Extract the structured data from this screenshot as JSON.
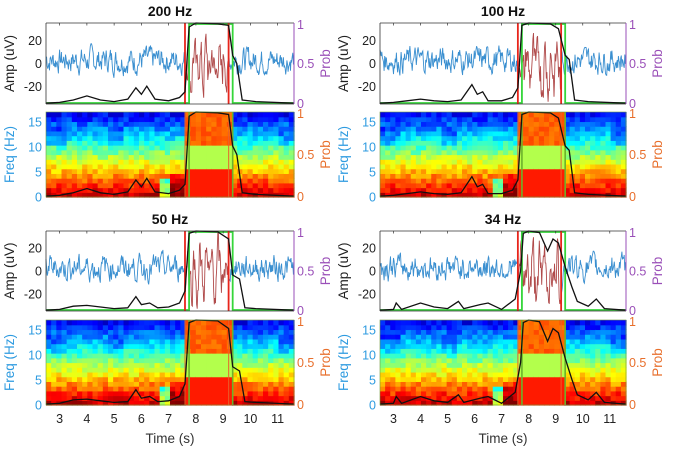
{
  "chart_data": {
    "type": "line",
    "figure_description": "Four EEG seizure-detection panels at different sampling rates; each has an amplitude trace (top) and spectrogram (bottom) with detection probability overlays",
    "shared": {
      "x_ticks": [
        3,
        4,
        5,
        6,
        7,
        8,
        9,
        10,
        11
      ],
      "xlim": [
        2.5,
        11.6
      ],
      "xlabel": "Time (s)",
      "amp_ylabel": "Amp (uV)",
      "amp_yticks": [
        -20,
        0,
        20
      ],
      "amp_ylim": [
        -35,
        35
      ],
      "freq_ylabel": "Freq (Hz)",
      "freq_yticks": [
        0,
        5,
        10,
        15
      ],
      "freq_ylim": [
        0,
        17
      ],
      "prob_label": "Prob",
      "prob_ticks": [
        "0",
        "0.5",
        "1"
      ],
      "prob_ylim": [
        0,
        1
      ],
      "colors": {
        "eeg_trace": "#3a8fd0",
        "seizure_trace": "#b04a4a",
        "prob_line": "#111111",
        "true_onset_line": "#e8251c",
        "detected_line": "#35d63a",
        "amp_axis_right": "#9a4fb8",
        "freq_axis_left": "#2e9be0",
        "prob_axis_right_spec": "#e86f2c"
      }
    },
    "panels": [
      {
        "title": "200 Hz",
        "true_onset_offset_s": [
          7.6,
          9.2
        ],
        "detected_onset_offset_s": [
          7.75,
          9.35
        ],
        "prob_points": [
          [
            2.5,
            0.01
          ],
          [
            3.0,
            0.02
          ],
          [
            3.5,
            0.05
          ],
          [
            4.0,
            0.1
          ],
          [
            4.5,
            0.05
          ],
          [
            5.0,
            0.03
          ],
          [
            5.5,
            0.06
          ],
          [
            5.8,
            0.2
          ],
          [
            6.0,
            0.12
          ],
          [
            6.2,
            0.22
          ],
          [
            6.5,
            0.06
          ],
          [
            7.0,
            0.04
          ],
          [
            7.4,
            0.08
          ],
          [
            7.6,
            0.15
          ],
          [
            7.75,
            0.95
          ],
          [
            8.0,
            1.0
          ],
          [
            8.8,
            0.99
          ],
          [
            9.2,
            0.97
          ],
          [
            9.35,
            0.6
          ],
          [
            9.5,
            0.5
          ],
          [
            9.7,
            0.05
          ],
          [
            10.2,
            0.03
          ],
          [
            11.6,
            0.01
          ]
        ]
      },
      {
        "title": "100 Hz",
        "true_onset_offset_s": [
          7.6,
          9.2
        ],
        "detected_onset_offset_s": [
          7.75,
          9.35
        ],
        "prob_points": [
          [
            2.5,
            0.01
          ],
          [
            3.0,
            0.02
          ],
          [
            3.5,
            0.04
          ],
          [
            4.0,
            0.06
          ],
          [
            4.5,
            0.04
          ],
          [
            5.0,
            0.03
          ],
          [
            5.5,
            0.05
          ],
          [
            5.9,
            0.24
          ],
          [
            6.1,
            0.12
          ],
          [
            6.3,
            0.15
          ],
          [
            6.5,
            0.04
          ],
          [
            7.0,
            0.04
          ],
          [
            7.4,
            0.08
          ],
          [
            7.6,
            0.2
          ],
          [
            7.75,
            0.97
          ],
          [
            8.0,
            1.0
          ],
          [
            8.8,
            0.99
          ],
          [
            9.1,
            0.93
          ],
          [
            9.35,
            0.6
          ],
          [
            9.5,
            0.55
          ],
          [
            9.7,
            0.05
          ],
          [
            10.2,
            0.03
          ],
          [
            11.6,
            0.01
          ]
        ]
      },
      {
        "title": "50 Hz",
        "true_onset_offset_s": [
          7.6,
          9.2
        ],
        "detected_onset_offset_s": [
          7.75,
          9.35
        ],
        "prob_points": [
          [
            2.5,
            0.01
          ],
          [
            3.0,
            0.02
          ],
          [
            3.5,
            0.06
          ],
          [
            4.0,
            0.07
          ],
          [
            4.5,
            0.05
          ],
          [
            5.0,
            0.03
          ],
          [
            5.5,
            0.04
          ],
          [
            5.8,
            0.18
          ],
          [
            6.0,
            0.08
          ],
          [
            6.3,
            0.1
          ],
          [
            6.6,
            0.04
          ],
          [
            7.0,
            0.05
          ],
          [
            7.4,
            0.1
          ],
          [
            7.6,
            0.25
          ],
          [
            7.75,
            0.97
          ],
          [
            8.0,
            1.0
          ],
          [
            8.8,
            0.99
          ],
          [
            9.2,
            0.9
          ],
          [
            9.35,
            0.45
          ],
          [
            9.6,
            0.4
          ],
          [
            9.8,
            0.04
          ],
          [
            10.2,
            0.03
          ],
          [
            11.6,
            0.01
          ]
        ]
      },
      {
        "title": "34 Hz",
        "true_onset_offset_s": [
          7.6,
          9.2
        ],
        "detected_onset_offset_s": [
          7.75,
          9.35
        ],
        "prob_points": [
          [
            2.5,
            0.01
          ],
          [
            3.0,
            0.02
          ],
          [
            3.1,
            0.1
          ],
          [
            3.3,
            0.02
          ],
          [
            4.0,
            0.1
          ],
          [
            4.5,
            0.05
          ],
          [
            5.0,
            0.03
          ],
          [
            5.4,
            0.12
          ],
          [
            5.6,
            0.03
          ],
          [
            6.2,
            0.08
          ],
          [
            6.5,
            0.1
          ],
          [
            7.0,
            0.02
          ],
          [
            7.5,
            0.15
          ],
          [
            7.7,
            0.5
          ],
          [
            7.8,
            0.97
          ],
          [
            8.0,
            1.0
          ],
          [
            8.4,
            0.98
          ],
          [
            8.7,
            0.75
          ],
          [
            8.9,
            0.9
          ],
          [
            9.1,
            0.85
          ],
          [
            9.35,
            0.55
          ],
          [
            9.6,
            0.3
          ],
          [
            9.8,
            0.12
          ],
          [
            10.2,
            0.06
          ],
          [
            10.5,
            0.15
          ],
          [
            10.8,
            0.03
          ],
          [
            11.6,
            0.01
          ]
        ]
      }
    ]
  }
}
